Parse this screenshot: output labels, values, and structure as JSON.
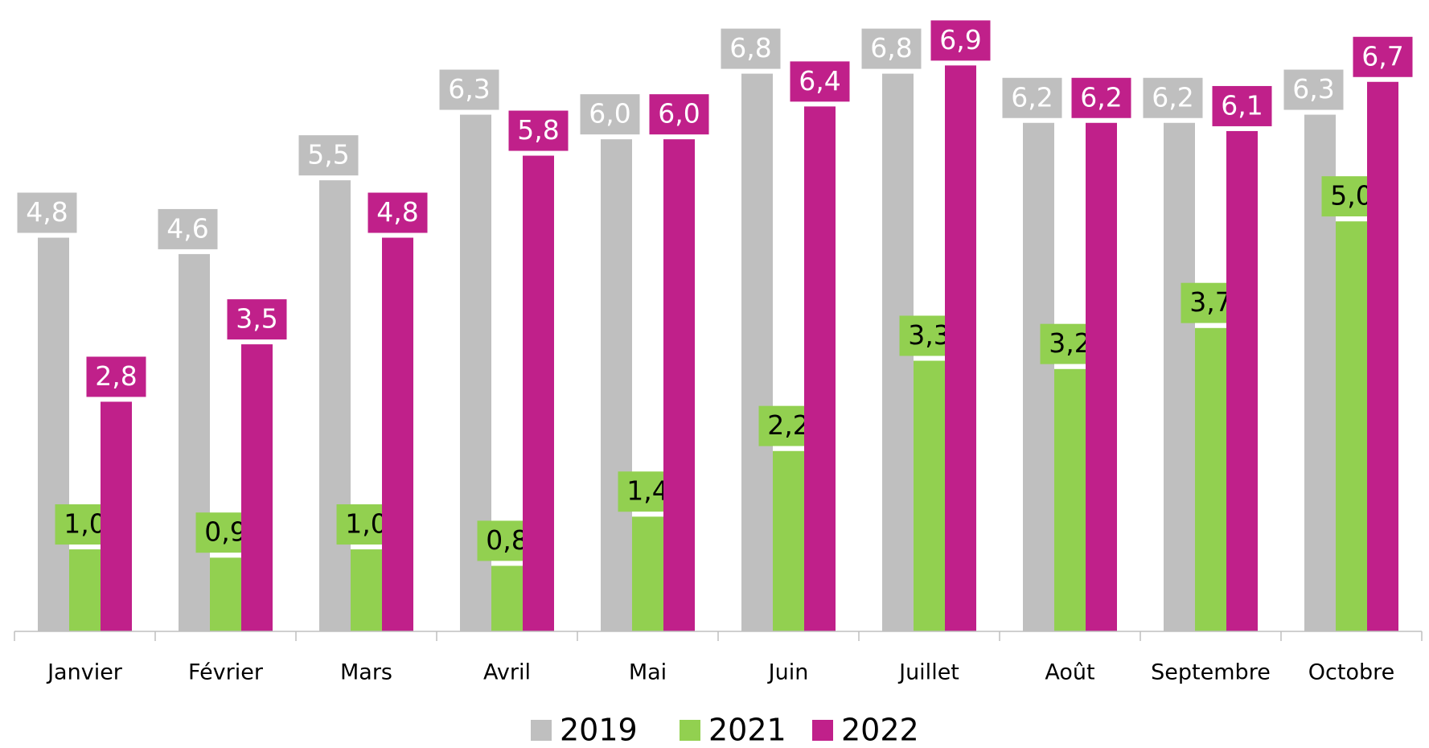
{
  "chart_data": {
    "type": "bar",
    "categories": [
      "Janvier",
      "Février",
      "Mars",
      "Avril",
      "Mai",
      "Juin",
      "Juillet",
      "Août",
      "Septembre",
      "Octobre"
    ],
    "series": [
      {
        "name": "2019",
        "color": "#bfbfbf",
        "values": [
          4.8,
          4.6,
          5.5,
          6.3,
          6.0,
          6.8,
          6.8,
          6.2,
          6.2,
          6.3
        ],
        "value_labels": [
          "4,8",
          "4,6",
          "5,5",
          "6,3",
          "6,0",
          "6,8",
          "6,8",
          "6,2",
          "6,2",
          "6,3"
        ]
      },
      {
        "name": "2021",
        "color": "#92d050",
        "values": [
          1.0,
          0.9,
          1.0,
          0.8,
          1.4,
          2.2,
          3.3,
          3.2,
          3.7,
          5.0
        ],
        "value_labels": [
          "1,0",
          "0,9",
          "1,0",
          "0,8",
          "1,4",
          "2,2",
          "3,3",
          "3,2",
          "3,7",
          "5,0"
        ]
      },
      {
        "name": "2022",
        "color": "#c0208a",
        "values": [
          2.8,
          3.5,
          4.8,
          5.8,
          6.0,
          6.4,
          6.9,
          6.2,
          6.1,
          6.7
        ],
        "value_labels": [
          "2,8",
          "3,5",
          "4,8",
          "5,8",
          "6,0",
          "6,4",
          "6,9",
          "6,2",
          "6,1",
          "6,7"
        ]
      }
    ],
    "ylim": [
      0,
      7.6
    ],
    "legend": "bottom"
  }
}
